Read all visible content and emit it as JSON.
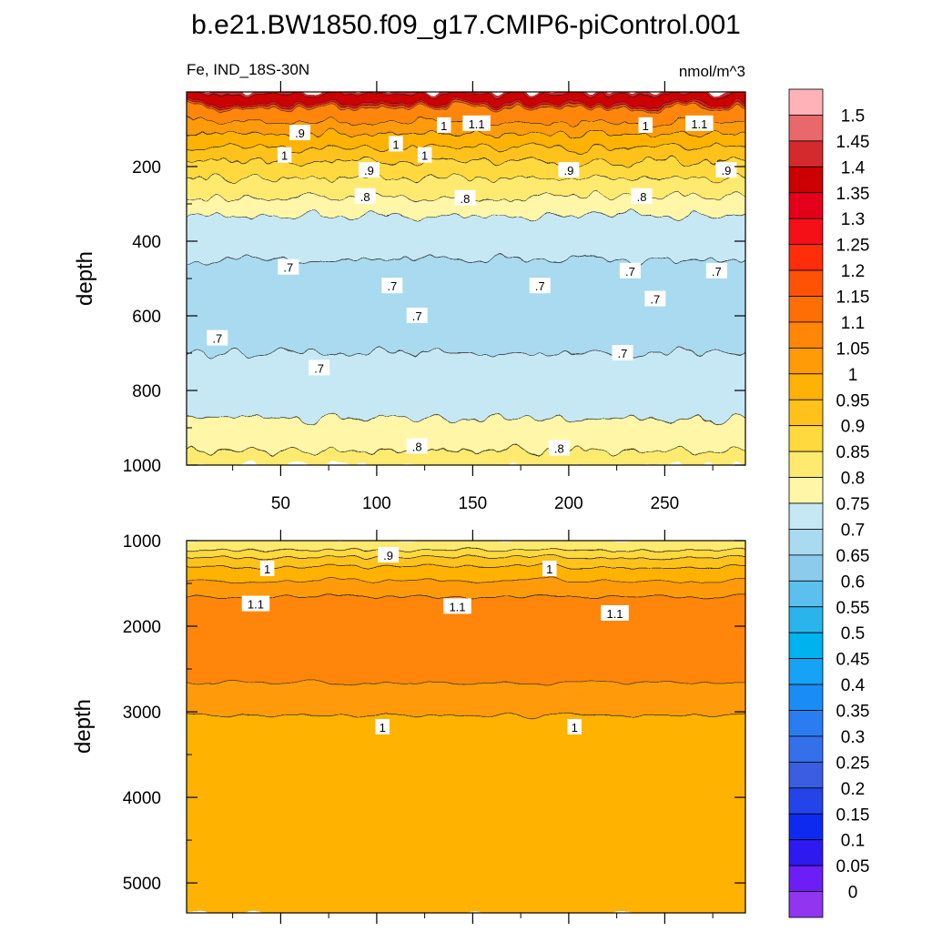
{
  "chart_data": [
    {
      "type": "heatmap",
      "title": "b.e21.BW1850.f09_g17.CMIP6-piControl.001",
      "subtitle_left": "Fe, IND_18S-30N",
      "subtitle_right": "nmol/m^3",
      "xlabel": "",
      "ylabel": "depth",
      "xlim": [
        1,
        292
      ],
      "ylim": [
        1000,
        0
      ],
      "x_ticks": [
        50,
        100,
        150,
        200,
        250
      ],
      "y_ticks": [
        200,
        400,
        600,
        800,
        1000
      ],
      "depth_bands": [
        {
          "depth": 5,
          "value": 1.4
        },
        {
          "depth": 30,
          "value": 1.35
        },
        {
          "depth": 45,
          "value": 1.1
        },
        {
          "depth": 80,
          "value": 1.05
        },
        {
          "depth": 110,
          "value": 1.0
        },
        {
          "depth": 150,
          "value": 0.95
        },
        {
          "depth": 190,
          "value": 0.9
        },
        {
          "depth": 230,
          "value": 0.85
        },
        {
          "depth": 280,
          "value": 0.8
        },
        {
          "depth": 330,
          "value": 0.75
        },
        {
          "depth": 450,
          "value": 0.7
        },
        {
          "depth": 560,
          "value": 0.68
        },
        {
          "depth": 700,
          "value": 0.7
        },
        {
          "depth": 840,
          "value": 0.72
        },
        {
          "depth": 900,
          "value": 0.77
        },
        {
          "depth": 1000,
          "value": 0.82
        }
      ],
      "contour_labels": [
        {
          "x": 60,
          "depth": 110,
          "label": ".9"
        },
        {
          "x": 135,
          "depth": 90,
          "label": "1"
        },
        {
          "x": 152,
          "depth": 85,
          "label": "1.1"
        },
        {
          "x": 110,
          "depth": 140,
          "label": "1"
        },
        {
          "x": 240,
          "depth": 90,
          "label": "1"
        },
        {
          "x": 268,
          "depth": 85,
          "label": "1.1"
        },
        {
          "x": 52,
          "depth": 170,
          "label": "1"
        },
        {
          "x": 125,
          "depth": 170,
          "label": "1"
        },
        {
          "x": 96,
          "depth": 210,
          "label": ".9"
        },
        {
          "x": 200,
          "depth": 210,
          "label": ".9"
        },
        {
          "x": 282,
          "depth": 210,
          "label": ".9"
        },
        {
          "x": 94,
          "depth": 280,
          "label": ".8"
        },
        {
          "x": 146,
          "depth": 285,
          "label": ".8"
        },
        {
          "x": 238,
          "depth": 280,
          "label": ".8"
        },
        {
          "x": 54,
          "depth": 470,
          "label": ".7"
        },
        {
          "x": 108,
          "depth": 520,
          "label": ".7"
        },
        {
          "x": 121,
          "depth": 600,
          "label": ".7"
        },
        {
          "x": 185,
          "depth": 520,
          "label": ".7"
        },
        {
          "x": 232,
          "depth": 480,
          "label": ".7"
        },
        {
          "x": 245,
          "depth": 555,
          "label": ".7"
        },
        {
          "x": 277,
          "depth": 480,
          "label": ".7"
        },
        {
          "x": 17,
          "depth": 660,
          "label": ".7"
        },
        {
          "x": 70,
          "depth": 740,
          "label": ".7"
        },
        {
          "x": 228,
          "depth": 700,
          "label": ".7"
        },
        {
          "x": 121,
          "depth": 950,
          "label": ".8"
        },
        {
          "x": 195,
          "depth": 955,
          "label": ".8"
        }
      ]
    },
    {
      "type": "heatmap",
      "xlabel": "",
      "ylabel": "depth",
      "xlim": [
        1,
        292
      ],
      "ylim": [
        5350,
        1000
      ],
      "y_ticks": [
        1000,
        2000,
        3000,
        4000,
        5000
      ],
      "depth_bands": [
        {
          "depth": 1000,
          "value": 0.8
        },
        {
          "depth": 1100,
          "value": 0.85
        },
        {
          "depth": 1200,
          "value": 0.9
        },
        {
          "depth": 1300,
          "value": 0.95
        },
        {
          "depth": 1450,
          "value": 1.0
        },
        {
          "depth": 1650,
          "value": 1.05
        },
        {
          "depth": 2500,
          "value": 1.08
        },
        {
          "depth": 2750,
          "value": 1.03
        },
        {
          "depth": 3250,
          "value": 0.98
        },
        {
          "depth": 5350,
          "value": 0.97
        }
      ],
      "contour_labels": [
        {
          "x": 106,
          "depth": 1170,
          "label": ".9"
        },
        {
          "x": 43,
          "depth": 1330,
          "label": "1"
        },
        {
          "x": 190,
          "depth": 1330,
          "label": "1"
        },
        {
          "x": 37,
          "depth": 1740,
          "label": "1.1"
        },
        {
          "x": 142,
          "depth": 1770,
          "label": "1.1"
        },
        {
          "x": 224,
          "depth": 1850,
          "label": "1.1"
        },
        {
          "x": 103,
          "depth": 3180,
          "label": "1"
        },
        {
          "x": 203,
          "depth": 3180,
          "label": "1"
        }
      ]
    }
  ],
  "colorbar": {
    "labels": [
      "1.5",
      "1.45",
      "1.4",
      "1.35",
      "1.3",
      "1.25",
      "1.2",
      "1.15",
      "1.1",
      "1.05",
      "1",
      "0.95",
      "0.9",
      "0.85",
      "0.8",
      "0.75",
      "0.7",
      "0.65",
      "0.6",
      "0.55",
      "0.5",
      "0.45",
      "0.4",
      "0.35",
      "0.3",
      "0.25",
      "0.2",
      "0.15",
      "0.1",
      "0.05",
      "0"
    ],
    "colors": [
      "#ffb3b8",
      "#e8686c",
      "#d42a2e",
      "#cc0000",
      "#e4001b",
      "#f50f17",
      "#ff2d0a",
      "#ff5205",
      "#ff6e04",
      "#ff8607",
      "#ff9b07",
      "#ffb206",
      "#ffc21a",
      "#ffd93d",
      "#ffea70",
      "#fff6a8",
      "#c6e8f5",
      "#a9daf0",
      "#8dcbec",
      "#5cc0ee",
      "#2bb3ec",
      "#00b2ee",
      "#16a3f5",
      "#1a8cf6",
      "#2a7df0",
      "#3570eb",
      "#3a5de2",
      "#2444e9",
      "#0f2af0",
      "#2e19f0",
      "#6d1df5",
      "#9135f0"
    ]
  }
}
